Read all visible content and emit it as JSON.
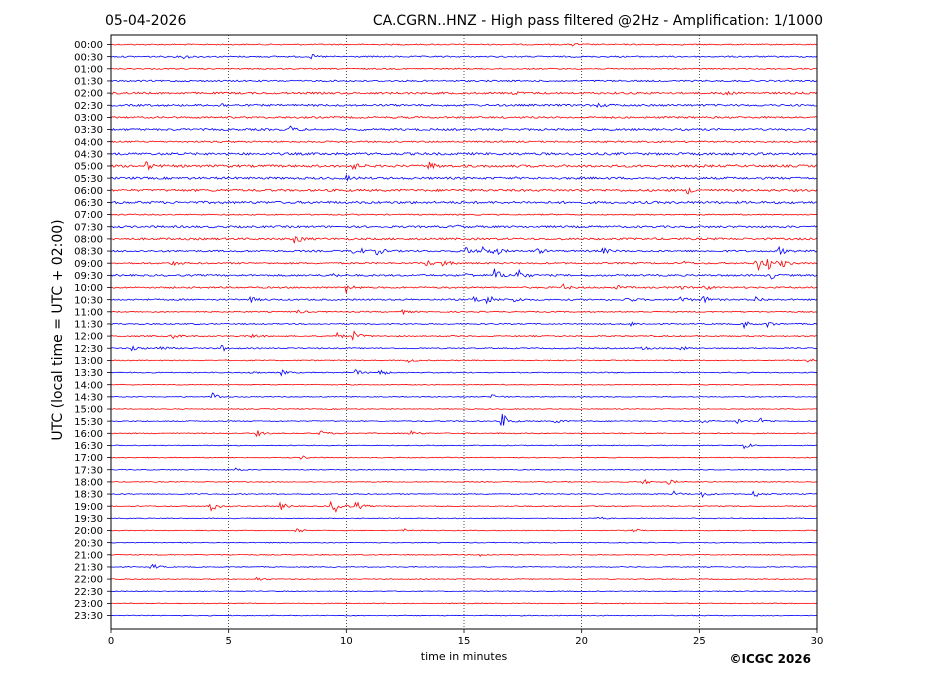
{
  "header": {
    "date": "05-04-2026",
    "title": "CA.CGRN..HNZ - High pass filtered @2Hz - Amplification: 1/1000"
  },
  "footer": {
    "copyright": "©ICGC 2026"
  },
  "chart_data": {
    "type": "line",
    "title": "CA.CGRN..HNZ - High pass filtered @2Hz - Amplification: 1/1000",
    "xlabel": "time in minutes",
    "ylabel": "UTC (local time = UTC + 02:00)",
    "xlim": [
      0,
      30
    ],
    "x_ticks": [
      "0",
      "5",
      "10",
      "15",
      "20",
      "25",
      "30"
    ],
    "x_tick_values": [
      0,
      5,
      10,
      15,
      20,
      25,
      30
    ],
    "grid": "vertical dotted at each x tick",
    "trace_colors": {
      "even_rows": "#ff0000",
      "odd_rows": "#0000ff"
    },
    "rows": [
      {
        "label": "00:00",
        "noise": 0.6,
        "events": [
          {
            "t": 19.6,
            "a": 1.5
          }
        ]
      },
      {
        "label": "00:30",
        "noise": 0.7,
        "events": [
          {
            "t": 3.1,
            "a": 2
          },
          {
            "t": 8.5,
            "a": 2
          }
        ]
      },
      {
        "label": "01:00",
        "noise": 0.6,
        "events": []
      },
      {
        "label": "01:30",
        "noise": 0.8,
        "events": []
      },
      {
        "label": "02:00",
        "noise": 1.0,
        "events": [
          {
            "t": 17,
            "a": 2
          },
          {
            "t": 26,
            "a": 2
          }
        ]
      },
      {
        "label": "02:30",
        "noise": 1.0,
        "events": [
          {
            "t": 4.6,
            "a": 2.5
          },
          {
            "t": 20.7,
            "a": 2
          }
        ]
      },
      {
        "label": "03:00",
        "noise": 0.9,
        "events": []
      },
      {
        "label": "03:30",
        "noise": 1.0,
        "events": [
          {
            "t": 7.6,
            "a": 3
          }
        ]
      },
      {
        "label": "04:00",
        "noise": 0.8,
        "events": []
      },
      {
        "label": "04:30",
        "noise": 1.2,
        "events": []
      },
      {
        "label": "05:00",
        "noise": 1.2,
        "events": [
          {
            "t": 1.5,
            "a": 4
          },
          {
            "t": 10.3,
            "a": 3
          },
          {
            "t": 13.5,
            "a": 4
          }
        ]
      },
      {
        "label": "05:30",
        "noise": 1.1,
        "events": [
          {
            "t": 10,
            "a": 2
          }
        ]
      },
      {
        "label": "06:00",
        "noise": 1.1,
        "events": [
          {
            "t": 24.5,
            "a": 3
          }
        ]
      },
      {
        "label": "06:30",
        "noise": 1.2,
        "events": []
      },
      {
        "label": "07:00",
        "noise": 0.6,
        "events": []
      },
      {
        "label": "07:30",
        "noise": 1.0,
        "events": [
          {
            "t": 14.6,
            "a": 2
          }
        ]
      },
      {
        "label": "08:00",
        "noise": 1.0,
        "events": [
          {
            "t": 7.8,
            "a": 5
          }
        ]
      },
      {
        "label": "08:30",
        "noise": 0.9,
        "events": [
          {
            "t": 10.3,
            "a": 9
          },
          {
            "t": 11.3,
            "a": 4
          },
          {
            "t": 15.1,
            "a": 4
          },
          {
            "t": 15.8,
            "a": 6
          },
          {
            "t": 16.3,
            "a": 4
          },
          {
            "t": 18.1,
            "a": 3
          },
          {
            "t": 20.9,
            "a": 3
          },
          {
            "t": 28.4,
            "a": 4
          }
        ]
      },
      {
        "label": "09:00",
        "noise": 0.8,
        "events": [
          {
            "t": 2.6,
            "a": 2
          },
          {
            "t": 13.4,
            "a": 3
          },
          {
            "t": 14.1,
            "a": 4
          },
          {
            "t": 24.3,
            "a": 2
          },
          {
            "t": 27.4,
            "a": 10
          },
          {
            "t": 27.9,
            "a": 6
          },
          {
            "t": 28.5,
            "a": 4
          }
        ]
      },
      {
        "label": "09:30",
        "noise": 0.9,
        "events": [
          {
            "t": 9.4,
            "a": 2
          },
          {
            "t": 15.1,
            "a": 2
          },
          {
            "t": 16.3,
            "a": 7
          },
          {
            "t": 17.2,
            "a": 9
          },
          {
            "t": 28,
            "a": 4
          }
        ]
      },
      {
        "label": "10:00",
        "noise": 0.8,
        "events": [
          {
            "t": 10,
            "a": 5
          },
          {
            "t": 19.2,
            "a": 3
          },
          {
            "t": 21.5,
            "a": 2
          },
          {
            "t": 24,
            "a": 3
          },
          {
            "t": 25.2,
            "a": 3
          }
        ]
      },
      {
        "label": "10:30",
        "noise": 0.8,
        "events": [
          {
            "t": 5.9,
            "a": 3
          },
          {
            "t": 15.4,
            "a": 4
          },
          {
            "t": 16,
            "a": 5
          },
          {
            "t": 17.1,
            "a": 3
          },
          {
            "t": 21.9,
            "a": 3
          },
          {
            "t": 24.2,
            "a": 4
          },
          {
            "t": 25.1,
            "a": 5
          },
          {
            "t": 27.4,
            "a": 3
          }
        ]
      },
      {
        "label": "11:00",
        "noise": 0.6,
        "events": [
          {
            "t": 7.9,
            "a": 2
          },
          {
            "t": 12.4,
            "a": 2
          }
        ]
      },
      {
        "label": "11:30",
        "noise": 0.6,
        "events": [
          {
            "t": 22.1,
            "a": 2
          },
          {
            "t": 26.9,
            "a": 4
          },
          {
            "t": 27.9,
            "a": 3
          }
        ]
      },
      {
        "label": "12:00",
        "noise": 0.6,
        "events": [
          {
            "t": 2.6,
            "a": 3
          },
          {
            "t": 6,
            "a": 3
          },
          {
            "t": 9.6,
            "a": 3
          },
          {
            "t": 10.3,
            "a": 5
          }
        ]
      },
      {
        "label": "12:30",
        "noise": 0.6,
        "events": [
          {
            "t": 0.9,
            "a": 3
          },
          {
            "t": 2,
            "a": 4
          },
          {
            "t": 4.7,
            "a": 3
          },
          {
            "t": 22.6,
            "a": 3
          },
          {
            "t": 24.2,
            "a": 2
          }
        ]
      },
      {
        "label": "13:00",
        "noise": 0.5,
        "events": [
          {
            "t": 12.6,
            "a": 2
          },
          {
            "t": 29.5,
            "a": 4
          }
        ]
      },
      {
        "label": "13:30",
        "noise": 0.5,
        "events": [
          {
            "t": 5.9,
            "a": 2
          },
          {
            "t": 7.2,
            "a": 3
          },
          {
            "t": 10.4,
            "a": 3
          },
          {
            "t": 11.4,
            "a": 4
          }
        ]
      },
      {
        "label": "14:00",
        "noise": 0.4,
        "events": []
      },
      {
        "label": "14:30",
        "noise": 0.4,
        "events": [
          {
            "t": 4.3,
            "a": 5
          },
          {
            "t": 16.2,
            "a": 4
          }
        ]
      },
      {
        "label": "15:00",
        "noise": 0.4,
        "events": []
      },
      {
        "label": "15:30",
        "noise": 0.5,
        "events": [
          {
            "t": 16.6,
            "a": 9
          },
          {
            "t": 18.9,
            "a": 3
          },
          {
            "t": 25.1,
            "a": 2
          },
          {
            "t": 26.6,
            "a": 3
          },
          {
            "t": 27.6,
            "a": 3
          }
        ]
      },
      {
        "label": "16:00",
        "noise": 0.5,
        "events": [
          {
            "t": 6.2,
            "a": 3
          },
          {
            "t": 8.9,
            "a": 3
          },
          {
            "t": 12.7,
            "a": 3
          }
        ]
      },
      {
        "label": "16:30",
        "noise": 0.4,
        "events": [
          {
            "t": 26.9,
            "a": 4
          }
        ]
      },
      {
        "label": "17:00",
        "noise": 0.4,
        "events": [
          {
            "t": 8.1,
            "a": 2
          }
        ]
      },
      {
        "label": "17:30",
        "noise": 0.4,
        "events": [
          {
            "t": 5.3,
            "a": 2
          }
        ]
      },
      {
        "label": "18:00",
        "noise": 0.4,
        "events": [
          {
            "t": 22.6,
            "a": 3
          },
          {
            "t": 23.7,
            "a": 3
          }
        ]
      },
      {
        "label": "18:30",
        "noise": 0.5,
        "events": [
          {
            "t": 23.9,
            "a": 3
          },
          {
            "t": 25.1,
            "a": 3
          },
          {
            "t": 27.3,
            "a": 4
          }
        ]
      },
      {
        "label": "19:00",
        "noise": 0.5,
        "events": [
          {
            "t": 4.2,
            "a": 7
          },
          {
            "t": 7.2,
            "a": 4
          },
          {
            "t": 9.3,
            "a": 6
          },
          {
            "t": 9.6,
            "a": 7
          },
          {
            "t": 10.4,
            "a": 5
          }
        ]
      },
      {
        "label": "19:30",
        "noise": 0.4,
        "events": [
          {
            "t": 20.7,
            "a": 2
          }
        ]
      },
      {
        "label": "20:00",
        "noise": 0.4,
        "events": [
          {
            "t": 7.9,
            "a": 3
          },
          {
            "t": 12.4,
            "a": 2
          },
          {
            "t": 22.2,
            "a": 2
          }
        ]
      },
      {
        "label": "20:30",
        "noise": 0.4,
        "events": []
      },
      {
        "label": "21:00",
        "noise": 0.4,
        "events": [
          {
            "t": 15.7,
            "a": 2
          }
        ]
      },
      {
        "label": "21:30",
        "noise": 0.4,
        "events": [
          {
            "t": 1.7,
            "a": 4
          }
        ]
      },
      {
        "label": "22:00",
        "noise": 0.4,
        "events": [
          {
            "t": 6.1,
            "a": 3
          }
        ]
      },
      {
        "label": "22:30",
        "noise": 0.4,
        "events": []
      },
      {
        "label": "23:00",
        "noise": 0.4,
        "events": []
      },
      {
        "label": "23:30",
        "noise": 0.4,
        "events": []
      }
    ]
  }
}
